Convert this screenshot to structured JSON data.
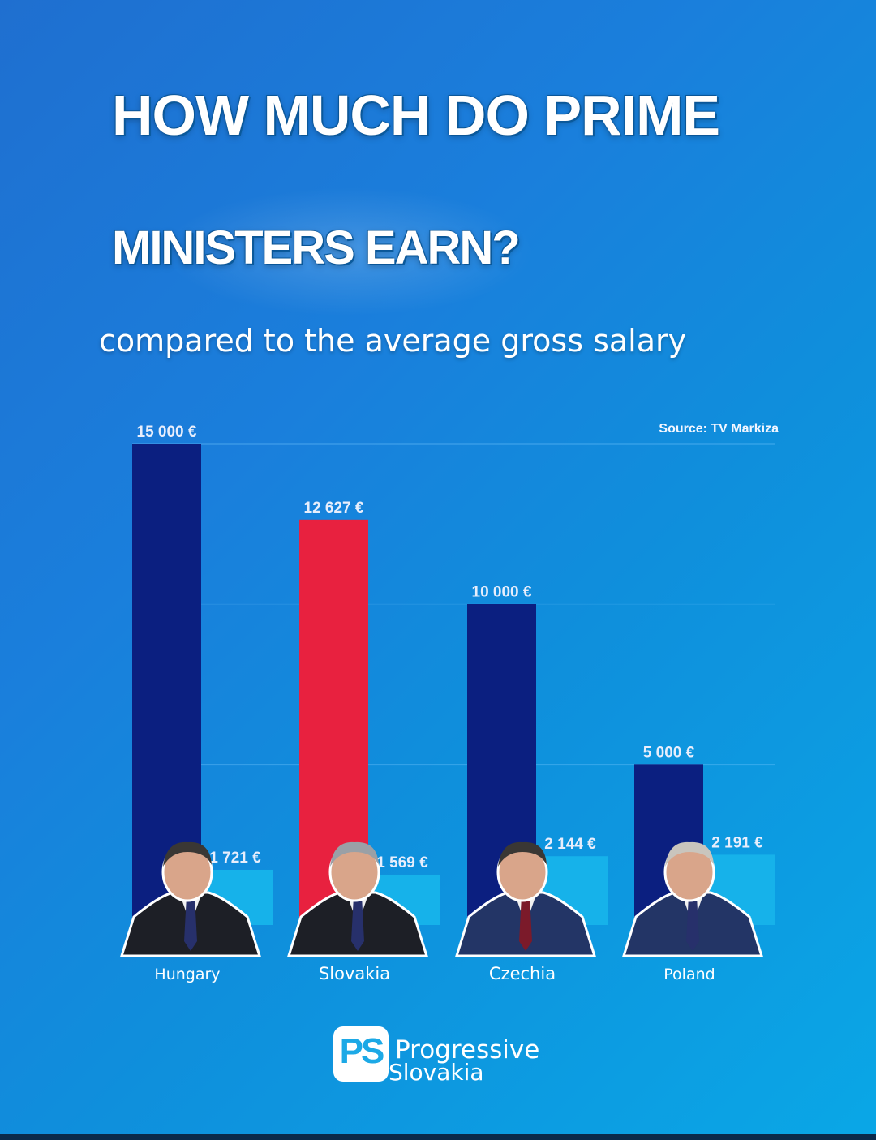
{
  "title_line1": "HOW MUCH DO PRIME",
  "title_line2": "MINISTERS EARN?",
  "subtitle": "compared to the average gross salary",
  "source": "Source: TV Markiza",
  "logo": {
    "mark": "PS",
    "line1": "Progressive",
    "line2": "Slovakia"
  },
  "colors": {
    "pm_salary": "#0b1f80",
    "pm_salary_highlight": "#e8213f",
    "average_salary": "#16b2ea",
    "background": "#1a7fdc"
  },
  "chart_data": {
    "type": "bar",
    "title": "HOW MUCH DO PRIME MINISTERS EARN?",
    "subtitle": "compared to the average gross salary",
    "categories": [
      "Hungary",
      "Slovakia",
      "Czechia",
      "Poland"
    ],
    "series": [
      {
        "values": [
          15000,
          12627,
          10000,
          5000
        ],
        "labels": [
          "15 000 €",
          "12 627 €",
          "10 000 €",
          "5 000 €"
        ]
      },
      {
        "values": [
          1721,
          1569,
          2144,
          2191
        ],
        "labels": [
          "1 721 €",
          "1 569 €",
          "2 144 €",
          "2 191 €"
        ]
      }
    ],
    "highlight_category": "Slovakia",
    "ylim": [
      0,
      15000
    ],
    "grid": true,
    "xlabel": "",
    "ylabel": ""
  }
}
